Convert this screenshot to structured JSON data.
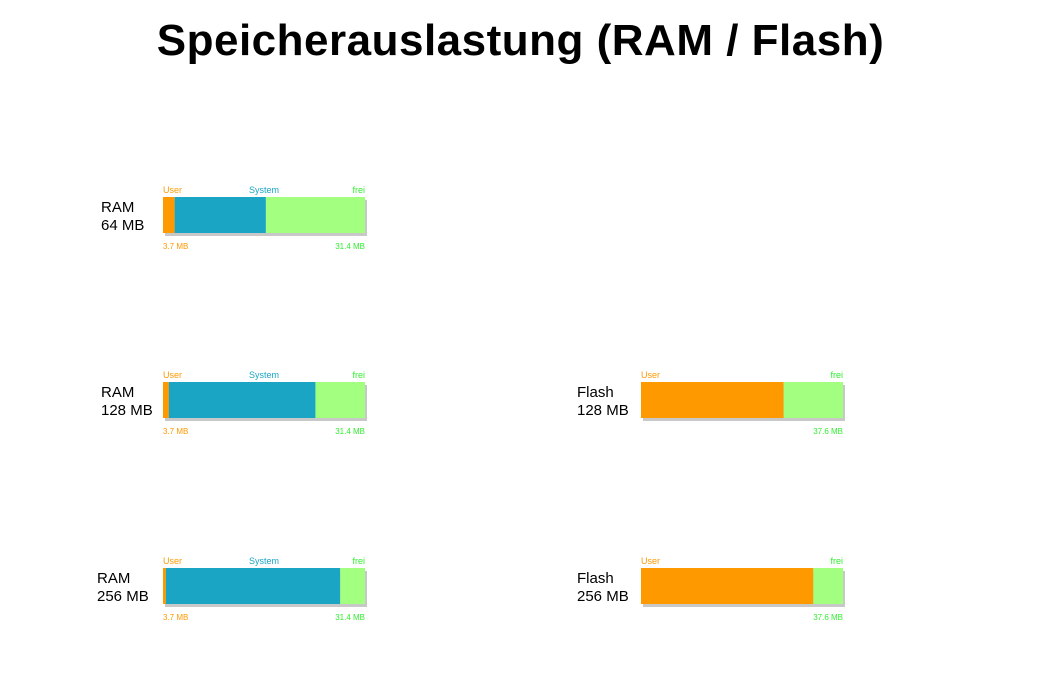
{
  "title": "Speicherauslastung (RAM / Flash)",
  "colors": {
    "user": "#ff9900",
    "system": "#1aa5c4",
    "frei": "#a3ff80",
    "frei_text": "#33ee33"
  },
  "chart_data": [
    {
      "type": "bar",
      "stacked": true,
      "label": [
        "RAM",
        "64 MB"
      ],
      "total": 64,
      "segments": [
        {
          "name": "User",
          "value": 3.7,
          "color": "#ff9900",
          "label": "User"
        },
        {
          "name": "System",
          "value": 28.9,
          "color": "#1aa5c4",
          "label": "System"
        },
        {
          "name": "frei",
          "value": 31.4,
          "color": "#a3ff80",
          "label": "frei"
        }
      ],
      "value_labels": {
        "left": "3.7 MB",
        "right": "31.4 MB"
      }
    },
    {
      "type": "bar",
      "stacked": true,
      "label": [
        "RAM",
        "128 MB"
      ],
      "total": 128,
      "segments": [
        {
          "name": "User",
          "value": 3.7,
          "color": "#ff9900",
          "label": "User"
        },
        {
          "name": "System",
          "value": 92.9,
          "color": "#1aa5c4",
          "label": "System"
        },
        {
          "name": "frei",
          "value": 31.4,
          "color": "#a3ff80",
          "label": "frei"
        }
      ],
      "value_labels": {
        "left": "3.7 MB",
        "right": "31.4 MB"
      }
    },
    {
      "type": "bar",
      "stacked": true,
      "label": [
        "RAM",
        "256 MB"
      ],
      "total": 256,
      "segments": [
        {
          "name": "User",
          "value": 3.7,
          "color": "#ff9900",
          "label": "User"
        },
        {
          "name": "System",
          "value": 220.9,
          "color": "#1aa5c4",
          "label": "System"
        },
        {
          "name": "frei",
          "value": 31.4,
          "color": "#a3ff80",
          "label": "frei"
        }
      ],
      "value_labels": {
        "left": "3.7 MB",
        "right": "31.4 MB"
      }
    },
    {
      "type": "bar",
      "stacked": true,
      "label": [
        "Flash",
        "128 MB"
      ],
      "total": 128,
      "segments": [
        {
          "name": "User",
          "value": 90.4,
          "color": "#ff9900",
          "label": "User"
        },
        {
          "name": "frei",
          "value": 37.6,
          "color": "#a3ff80",
          "label": "frei"
        }
      ],
      "value_labels": {
        "left": "",
        "right": "37.6 MB"
      }
    },
    {
      "type": "bar",
      "stacked": true,
      "label": [
        "Flash",
        "256 MB"
      ],
      "total": 256,
      "segments": [
        {
          "name": "User",
          "value": 218.4,
          "color": "#ff9900",
          "label": "User"
        },
        {
          "name": "frei",
          "value": 37.6,
          "color": "#a3ff80",
          "label": "frei"
        }
      ],
      "value_labels": {
        "left": "",
        "right": "37.6 MB"
      }
    }
  ]
}
